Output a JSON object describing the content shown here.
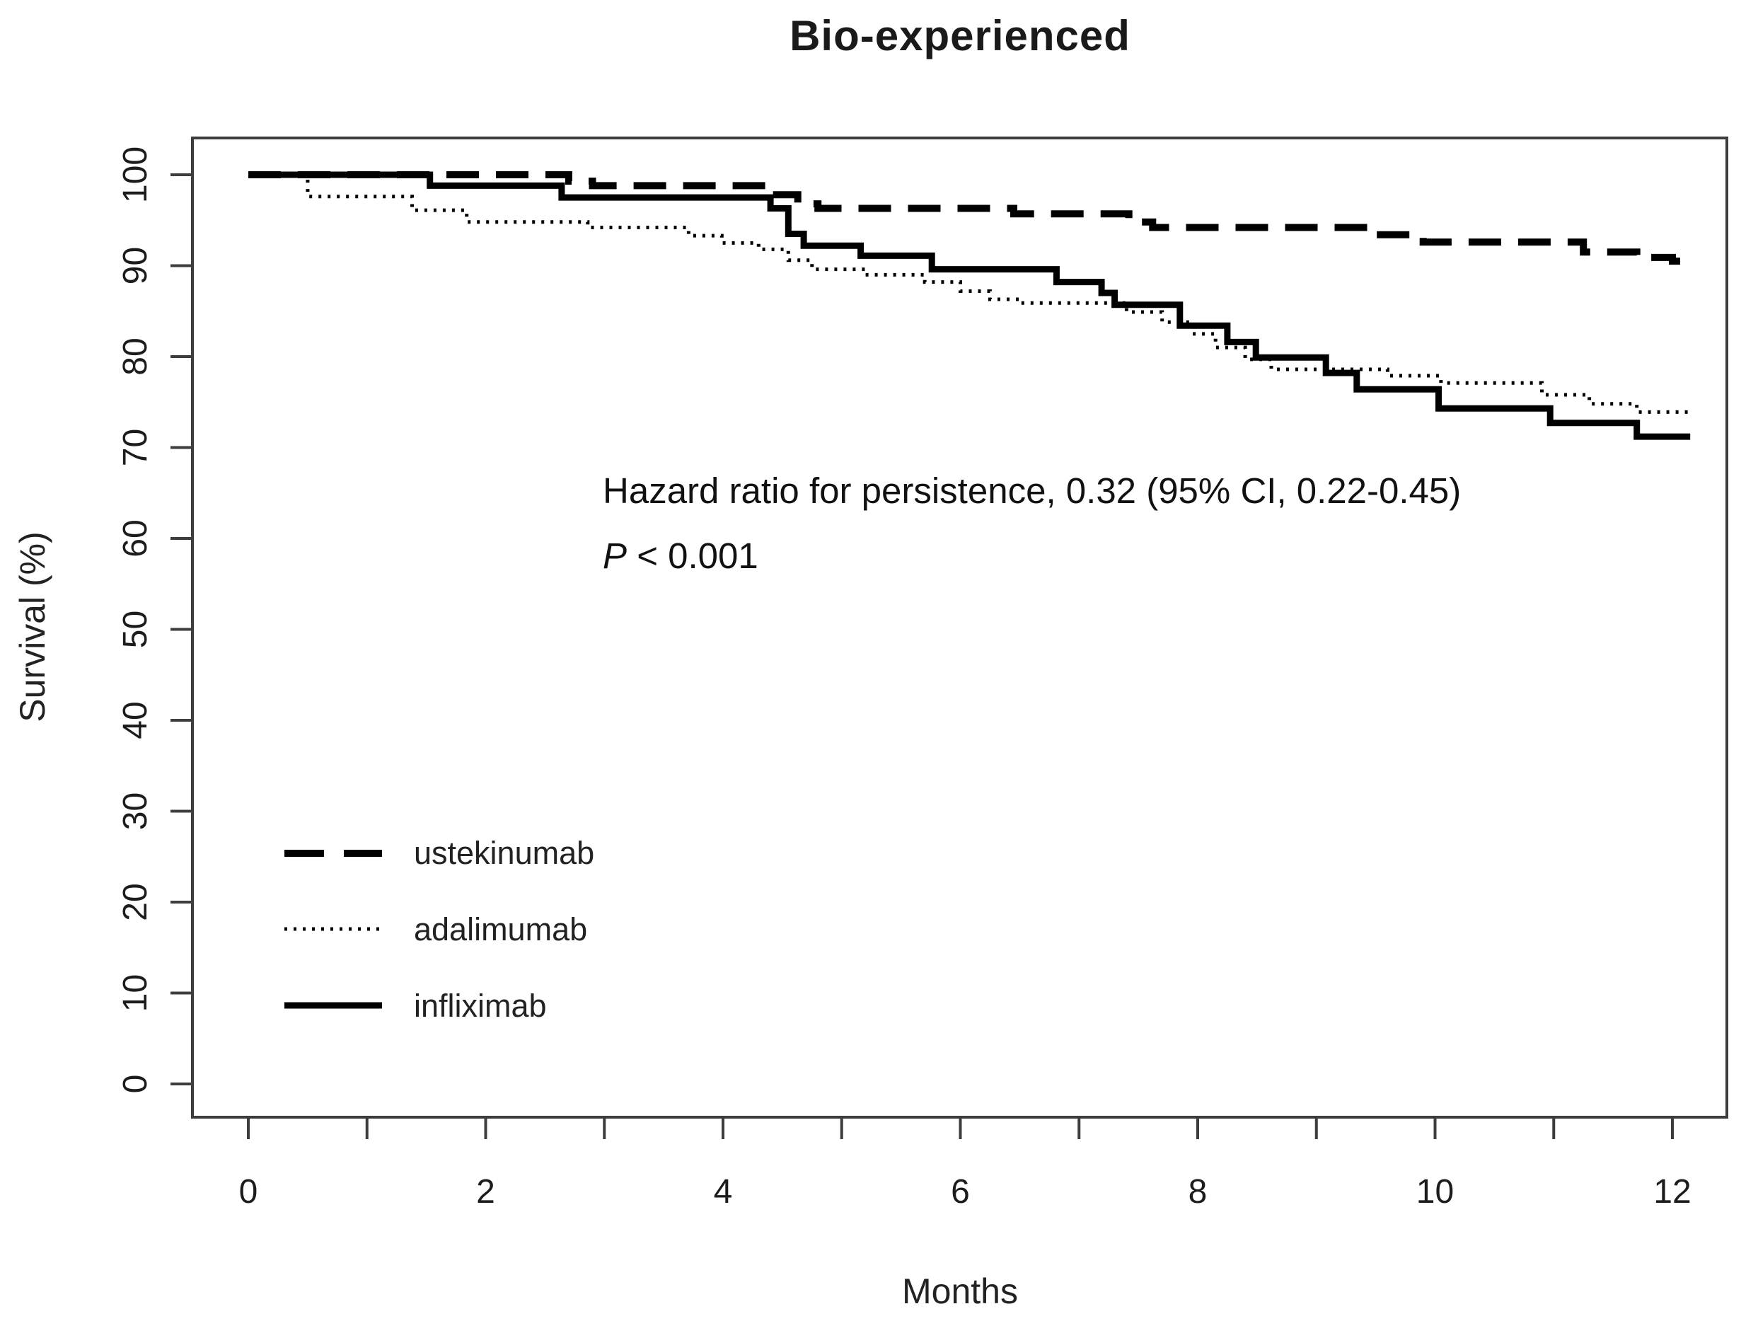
{
  "title": "Bio-experienced",
  "colors": {
    "curve": "#000000",
    "axis": "#3d3d3d",
    "text": "#1c1c1c",
    "background": "#ffffff"
  },
  "annotation": {
    "line1": "Hazard ratio for persistence, 0.32 (95% CI, 0.22-0.45)",
    "p_symbol": "P",
    "p_rest": " < 0.001"
  },
  "legend": {
    "items": [
      {
        "label": "ustekinumab",
        "line_style": "dashed"
      },
      {
        "label": "adalimumab",
        "line_style": "dotted"
      },
      {
        "label": "infliximab",
        "line_style": "solid"
      }
    ],
    "position": "lower-left"
  },
  "chart_data": {
    "type": "line",
    "subtype": "step-survival",
    "title": "Bio-experienced",
    "xlabel": "Months",
    "ylabel": "Survival (%)",
    "xlim": [
      -0.47,
      12.46
    ],
    "ylim": [
      -2.5,
      104
    ],
    "x_ticks": [
      0,
      1,
      2,
      3,
      4,
      5,
      6,
      7,
      8,
      9,
      10,
      11,
      12
    ],
    "x_tick_labels": [
      "0",
      "2",
      "4",
      "6",
      "8",
      "10",
      "12"
    ],
    "x_labeled_ticks": [
      0,
      2,
      4,
      6,
      8,
      10,
      12
    ],
    "y_ticks": [
      0,
      10,
      20,
      30,
      40,
      50,
      60,
      70,
      80,
      90,
      100
    ],
    "grid": false,
    "series": [
      {
        "name": "ustekinumab",
        "line_style": "dashed",
        "end_month": 12.2,
        "points": [
          [
            0,
            100
          ],
          [
            2.7,
            99.3
          ],
          [
            2.9,
            98.8
          ],
          [
            4.4,
            97.8
          ],
          [
            4.63,
            96.8
          ],
          [
            4.8,
            96.3
          ],
          [
            6.45,
            95.7
          ],
          [
            7.42,
            94.8
          ],
          [
            7.62,
            94.2
          ],
          [
            9.45,
            93.4
          ],
          [
            9.9,
            92.6
          ],
          [
            11.25,
            91.5
          ],
          [
            11.7,
            90.9
          ],
          [
            12.0,
            90.5
          ]
        ]
      },
      {
        "name": "adalimumab",
        "line_style": "dotted",
        "end_month": 12.15,
        "points": [
          [
            0,
            100
          ],
          [
            0.5,
            97.6
          ],
          [
            1.38,
            96.1
          ],
          [
            1.84,
            94.8
          ],
          [
            2.86,
            94.2
          ],
          [
            3.71,
            93.3
          ],
          [
            3.99,
            92.5
          ],
          [
            4.3,
            91.8
          ],
          [
            4.55,
            90.6
          ],
          [
            4.75,
            89.6
          ],
          [
            5.2,
            89.0
          ],
          [
            5.7,
            88.2
          ],
          [
            6.0,
            87.2
          ],
          [
            6.25,
            86.3
          ],
          [
            6.5,
            85.9
          ],
          [
            7.4,
            84.9
          ],
          [
            7.7,
            83.8
          ],
          [
            7.95,
            82.5
          ],
          [
            8.15,
            81.0
          ],
          [
            8.4,
            79.7
          ],
          [
            8.62,
            78.6
          ],
          [
            9.6,
            77.9
          ],
          [
            10.05,
            77.1
          ],
          [
            10.9,
            75.8
          ],
          [
            11.3,
            74.8
          ],
          [
            11.7,
            73.9
          ]
        ]
      },
      {
        "name": "infliximab",
        "line_style": "solid",
        "end_month": 12.15,
        "points": [
          [
            0,
            100
          ],
          [
            1.53,
            98.8
          ],
          [
            2.64,
            97.5
          ],
          [
            4.4,
            96.3
          ],
          [
            4.55,
            93.5
          ],
          [
            4.68,
            92.2
          ],
          [
            5.16,
            91.1
          ],
          [
            5.76,
            89.6
          ],
          [
            6.81,
            88.2
          ],
          [
            7.19,
            87.0
          ],
          [
            7.3,
            85.7
          ],
          [
            7.85,
            83.4
          ],
          [
            8.25,
            81.6
          ],
          [
            8.49,
            79.9
          ],
          [
            9.08,
            78.2
          ],
          [
            9.34,
            76.4
          ],
          [
            10.03,
            74.3
          ],
          [
            10.97,
            72.7
          ],
          [
            11.7,
            71.2
          ]
        ]
      }
    ]
  }
}
